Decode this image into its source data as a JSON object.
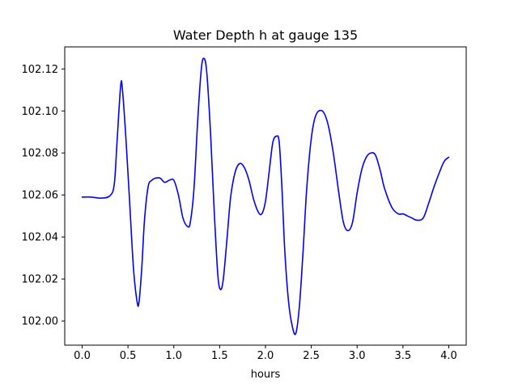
{
  "chart_data": {
    "type": "line",
    "title": "Water Depth h at gauge 135",
    "xlabel": "hours",
    "ylabel": "",
    "xlim": [
      -0.19,
      4.19
    ],
    "ylim": [
      101.9885,
      102.1305
    ],
    "x_ticks": [
      0.0,
      0.5,
      1.0,
      1.5,
      2.0,
      2.5,
      3.0,
      3.5,
      4.0
    ],
    "x_tick_labels": [
      "0.0",
      "0.5",
      "1.0",
      "1.5",
      "2.0",
      "2.5",
      "3.0",
      "3.5",
      "4.0"
    ],
    "y_ticks": [
      102.0,
      102.02,
      102.04,
      102.06,
      102.08,
      102.1,
      102.12
    ],
    "y_tick_labels": [
      "102.00",
      "102.02",
      "102.04",
      "102.06",
      "102.08",
      "102.10",
      "102.12"
    ],
    "grid": false,
    "series": [
      {
        "color": "#0000ff",
        "x": [
          0.0,
          0.1,
          0.2,
          0.3,
          0.35,
          0.38,
          0.42,
          0.44,
          0.48,
          0.52,
          0.56,
          0.6,
          0.62,
          0.65,
          0.68,
          0.72,
          0.76,
          0.8,
          0.85,
          0.9,
          0.95,
          1.0,
          1.05,
          1.1,
          1.15,
          1.18,
          1.22,
          1.26,
          1.3,
          1.33,
          1.36,
          1.4,
          1.44,
          1.48,
          1.51,
          1.54,
          1.58,
          1.62,
          1.67,
          1.72,
          1.77,
          1.82,
          1.87,
          1.92,
          1.96,
          2.0,
          2.04,
          2.08,
          2.12,
          2.15,
          2.18,
          2.21,
          2.25,
          2.29,
          2.33,
          2.37,
          2.41,
          2.45,
          2.5,
          2.55,
          2.62,
          2.68,
          2.74,
          2.8,
          2.85,
          2.9,
          2.95,
          3.0,
          3.05,
          3.1,
          3.15,
          3.2,
          3.25,
          3.3,
          3.38,
          3.45,
          3.5,
          3.55,
          3.6,
          3.65,
          3.72,
          3.78,
          3.84,
          3.9,
          3.95,
          4.0
        ],
        "y": [
          102.059,
          102.059,
          102.0585,
          102.0595,
          102.065,
          102.085,
          102.112,
          102.11,
          102.085,
          102.055,
          102.025,
          102.009,
          102.009,
          102.025,
          102.048,
          102.064,
          102.067,
          102.068,
          102.068,
          102.066,
          102.067,
          102.067,
          102.06,
          102.049,
          102.045,
          102.047,
          102.063,
          102.095,
          102.12,
          102.125,
          102.118,
          102.09,
          102.053,
          102.022,
          102.015,
          102.02,
          102.039,
          102.059,
          102.071,
          102.075,
          102.073,
          102.067,
          102.058,
          102.052,
          102.051,
          102.057,
          102.071,
          102.085,
          102.088,
          102.085,
          102.063,
          102.034,
          102.01,
          101.998,
          101.994,
          102.007,
          102.033,
          102.063,
          102.087,
          102.098,
          102.1,
          102.094,
          102.08,
          102.061,
          102.047,
          102.043,
          102.047,
          102.061,
          102.072,
          102.078,
          102.08,
          102.079,
          102.072,
          102.063,
          102.054,
          102.051,
          102.051,
          102.05,
          102.049,
          102.048,
          102.049,
          102.056,
          102.064,
          102.071,
          102.076,
          102.078
        ]
      }
    ]
  }
}
